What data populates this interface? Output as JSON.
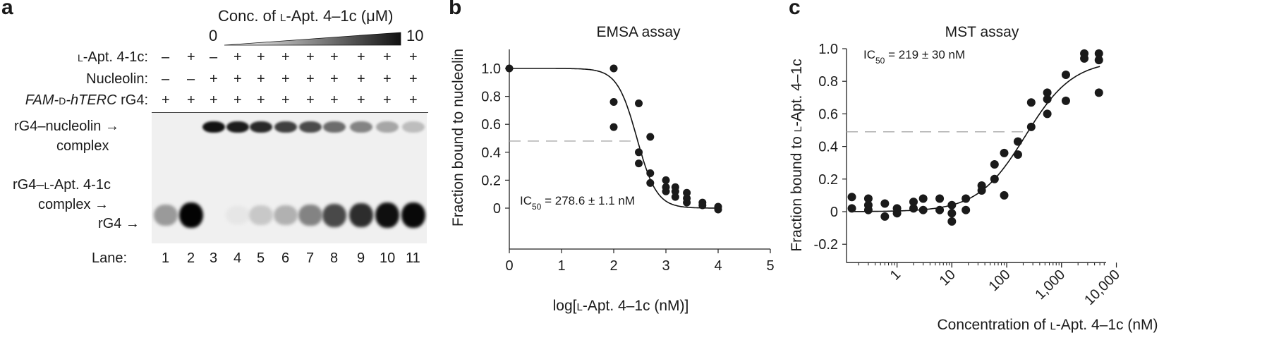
{
  "panel_a": {
    "letter": "a",
    "conc_label_prefix": "Conc. of ",
    "conc_label_l": "l",
    "conc_label_suffix": "-Apt. 4–1c (μM)",
    "conc_min": "0",
    "conc_max": "10",
    "rows": [
      {
        "label_pre": "",
        "label_sc": "l",
        "label_rest": "-Apt. 4-1c:",
        "marks": [
          "–",
          "+",
          "–",
          "+",
          "+",
          "+",
          "+",
          "+",
          "+",
          "+",
          "+"
        ]
      },
      {
        "label_pre": "",
        "label_sc": "",
        "label_rest": "Nucleolin:",
        "marks": [
          "–",
          "–",
          "+",
          "+",
          "+",
          "+",
          "+",
          "+",
          "+",
          "+",
          "+"
        ]
      },
      {
        "label_pre": "FAM-",
        "label_sc": "d",
        "label_rest": "-hTERC",
        "label_tail": " rG4:",
        "marks": [
          "+",
          "+",
          "+",
          "+",
          "+",
          "+",
          "+",
          "+",
          "+",
          "+",
          "+"
        ]
      }
    ],
    "band_labels": {
      "complex1_line1": "rG4–nucleolin",
      "complex1_line2": "complex",
      "complex2_line1_pre": "rG4–",
      "complex2_line1_sc": "l",
      "complex2_line1_post": "-Apt. 4-1c",
      "complex2_line2": "complex",
      "rg4": "rG4",
      "arrow": "→"
    },
    "lane_label": "Lane:",
    "lanes": [
      "1",
      "2",
      "3",
      "4",
      "5",
      "6",
      "7",
      "8",
      "9",
      "10",
      "11"
    ],
    "gel_intensity": {
      "complex_band": [
        0,
        0,
        0.95,
        0.9,
        0.85,
        0.75,
        0.7,
        0.55,
        0.45,
        0.3,
        0.2
      ],
      "rg4_band": [
        0.35,
        1.0,
        0,
        0.02,
        0.15,
        0.25,
        0.45,
        0.7,
        0.82,
        0.95,
        0.98
      ]
    }
  },
  "panel_b": {
    "letter": "b",
    "chart_data": {
      "type": "scatter",
      "title": "EMSA assay",
      "xlabel_pre": "log[",
      "xlabel_sc": "l",
      "xlabel_post": "-Apt. 4–1c (nM)]",
      "ylabel": "Fraction bound to nucleolin",
      "xlim": [
        0,
        5
      ],
      "ylim": [
        -0.1,
        1.1
      ],
      "xticks": [
        "0",
        "1",
        "2",
        "3",
        "4",
        "5"
      ],
      "yticks": [
        "0",
        "0.2",
        "0.4",
        "0.6",
        "0.8",
        "1.0"
      ],
      "annotation_pre": "IC",
      "annotation_sub": "50",
      "annotation_post": " = 278.6 ± 1.1 nM",
      "reference_line_y": 0.48,
      "points": [
        [
          0,
          1.0
        ],
        [
          2.0,
          1.0
        ],
        [
          2.0,
          0.76
        ],
        [
          2.0,
          0.58
        ],
        [
          2.48,
          0.75
        ],
        [
          2.48,
          0.4
        ],
        [
          2.48,
          0.32
        ],
        [
          2.7,
          0.51
        ],
        [
          2.7,
          0.25
        ],
        [
          2.7,
          0.18
        ],
        [
          3.0,
          0.2
        ],
        [
          3.0,
          0.15
        ],
        [
          3.0,
          0.12
        ],
        [
          3.18,
          0.15
        ],
        [
          3.18,
          0.12
        ],
        [
          3.18,
          0.08
        ],
        [
          3.4,
          0.11
        ],
        [
          3.4,
          0.07
        ],
        [
          3.4,
          0.04
        ],
        [
          3.7,
          0.04
        ],
        [
          3.7,
          0.02
        ],
        [
          4.0,
          0.01
        ],
        [
          4.0,
          -0.01
        ]
      ],
      "fit": {
        "model": "sigmoid",
        "top": 1.0,
        "bottom": 0.0,
        "logIC50": 2.445,
        "hill": 1.0
      }
    }
  },
  "panel_c": {
    "letter": "c",
    "chart_data": {
      "type": "scatter",
      "title": "MST assay",
      "xlabel_pre": "Concentration of ",
      "xlabel_sc": "l",
      "xlabel_post": "-Apt. 4–1c (nM)",
      "ylabel_pre": "Fraction bound to ",
      "ylabel_sc": "l",
      "ylabel_post": "-Apt. 4–1c",
      "x_scale": "log",
      "xlim": [
        0.12,
        6500
      ],
      "ylim": [
        -0.3,
        1.0
      ],
      "xticks": [
        {
          "v": 1,
          "label": "1"
        },
        {
          "v": 10,
          "label": "10"
        },
        {
          "v": 100,
          "label": "100"
        },
        {
          "v": 1000,
          "label": "1,000"
        },
        {
          "v": 10000,
          "label": "10,000"
        }
      ],
      "yticks": [
        "-0.2",
        "0",
        "0.2",
        "0.4",
        "0.6",
        "0.8",
        "1.0"
      ],
      "annotation_pre": "IC",
      "annotation_sub": "50",
      "annotation_post": " = 219 ± 30 nM",
      "reference_line_y": 0.49,
      "points": [
        [
          0.15,
          0.09
        ],
        [
          0.15,
          0.02
        ],
        [
          0.3,
          0.08
        ],
        [
          0.3,
          0.04
        ],
        [
          0.3,
          0.01
        ],
        [
          0.6,
          0.05
        ],
        [
          0.6,
          -0.03
        ],
        [
          1.0,
          0.02
        ],
        [
          1.0,
          -0.01
        ],
        [
          2.0,
          0.06
        ],
        [
          2.0,
          0.02
        ],
        [
          3.0,
          0.08
        ],
        [
          3.0,
          0.01
        ],
        [
          6.0,
          0.08
        ],
        [
          6.0,
          0.01
        ],
        [
          10.0,
          0.04
        ],
        [
          10.0,
          -0.01
        ],
        [
          10.0,
          -0.06
        ],
        [
          18.0,
          0.08
        ],
        [
          18.0,
          0.01
        ],
        [
          35.0,
          0.16
        ],
        [
          35.0,
          0.13
        ],
        [
          60.0,
          0.29
        ],
        [
          60.0,
          0.2
        ],
        [
          90.0,
          0.36
        ],
        [
          90.0,
          0.1
        ],
        [
          160.0,
          0.43
        ],
        [
          160.0,
          0.35
        ],
        [
          280.0,
          0.67
        ],
        [
          280.0,
          0.52
        ],
        [
          550.0,
          0.73
        ],
        [
          550.0,
          0.69
        ],
        [
          550.0,
          0.6
        ],
        [
          1200.0,
          0.84
        ],
        [
          1200.0,
          0.68
        ],
        [
          2600.0,
          0.97
        ],
        [
          2600.0,
          0.94
        ],
        [
          4800.0,
          0.97
        ],
        [
          4800.0,
          0.93
        ],
        [
          4800.0,
          0.73
        ]
      ],
      "fit": {
        "model": "logistic",
        "top": 0.93,
        "bottom": 0.0,
        "IC50": 219,
        "hill": 1.0
      }
    }
  }
}
